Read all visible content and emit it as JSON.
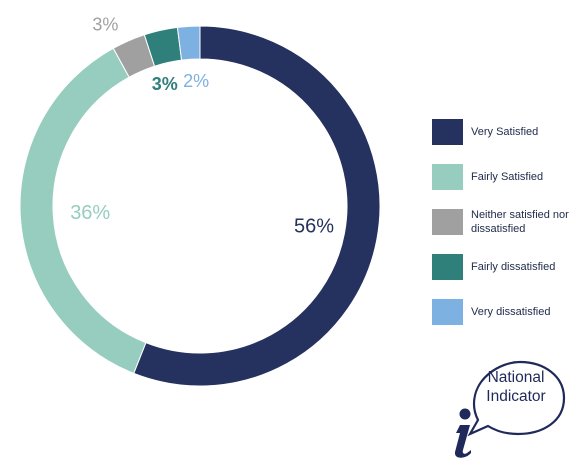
{
  "chart_data": {
    "type": "pie",
    "donut": true,
    "slices": [
      {
        "label": "Very Satisfied",
        "value": 56,
        "display": "56%",
        "color": "#25315f"
      },
      {
        "label": "Fairly Satisfied",
        "value": 36,
        "display": "36%",
        "color": "#96cdbf"
      },
      {
        "label": "Neither satisfied nor dissatisfied",
        "value": 3,
        "display": "3%",
        "color": "#a0a0a0"
      },
      {
        "label": "Fairly dissatisfied",
        "value": 3,
        "display": "3%",
        "color": "#2f7f7b"
      },
      {
        "label": "Very dissatisfied",
        "value": 2,
        "display": "2%",
        "color": "#7db1e2"
      }
    ],
    "legend_position": "right"
  },
  "legend": {
    "items": [
      {
        "label": "Very Satisfied",
        "color": "#25315f"
      },
      {
        "label": "Fairly Satisfied",
        "color": "#96cdbf"
      },
      {
        "label": "Neither satisfied nor dissatisfied",
        "color": "#a0a0a0"
      },
      {
        "label": "Fairly dissatisfied",
        "color": "#2f7f7b"
      },
      {
        "label": "Very dissatisfied",
        "color": "#7db1e2"
      }
    ]
  },
  "badge": {
    "line1": "National",
    "line2": "Indicator",
    "icon": "info-speech-bubble-icon",
    "color": "#1f2a5a"
  }
}
